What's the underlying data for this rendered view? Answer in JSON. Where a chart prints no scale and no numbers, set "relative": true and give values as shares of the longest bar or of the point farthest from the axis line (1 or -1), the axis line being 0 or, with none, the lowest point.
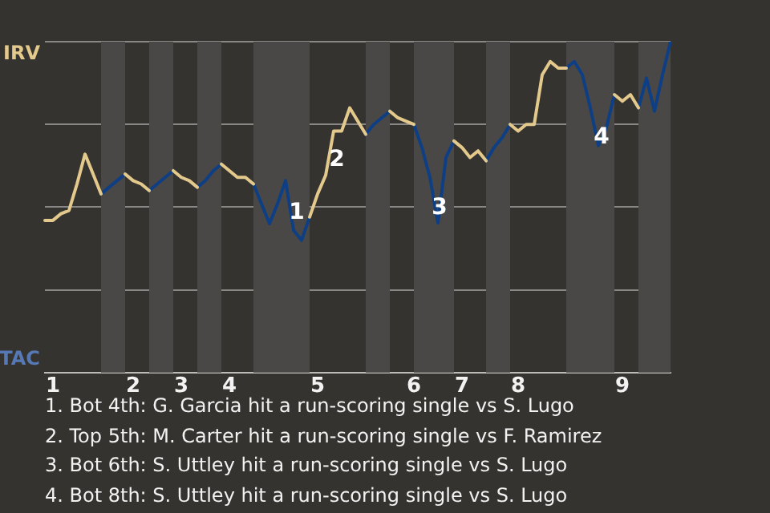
{
  "chart_data": {
    "type": "line",
    "relative": true,
    "grid": "y",
    "legend": false,
    "marker": "none",
    "line_style": "solid",
    "categories": [
      null,
      "1",
      null,
      null,
      null,
      null,
      null,
      null,
      null,
      null,
      null,
      "2",
      null,
      null,
      null,
      null,
      null,
      "3",
      null,
      null,
      null,
      null,
      null,
      "4",
      null,
      null,
      null,
      null,
      null,
      null,
      null,
      null,
      null,
      null,
      "5",
      null,
      null,
      null,
      null,
      null,
      null,
      null,
      null,
      null,
      null,
      null,
      "6",
      null,
      null,
      null,
      null,
      null,
      "7",
      null,
      null,
      null,
      null,
      null,
      null,
      "8",
      null,
      null,
      null,
      null,
      null,
      null,
      null,
      null,
      null,
      null,
      null,
      null,
      "9",
      null,
      null,
      null,
      null,
      null,
      null
    ],
    "series": [
      {
        "color": "#e3c98b",
        "values": [
          0.46,
          0.46,
          0.48,
          0.49,
          0.57,
          0.66,
          0.6,
          0.54,
          null,
          null,
          0.6,
          0.58,
          0.57,
          0.55,
          null,
          null,
          0.61,
          0.59,
          0.58,
          0.56,
          null,
          null,
          0.63,
          0.61,
          0.59,
          0.59,
          0.57,
          null,
          null,
          null,
          null,
          null,
          null,
          0.47,
          0.54,
          0.596,
          0.73,
          0.73,
          0.8,
          0.76,
          0.72,
          null,
          null,
          0.79,
          0.77,
          0.76,
          0.75,
          null,
          null,
          null,
          null,
          0.7,
          0.68,
          0.65,
          0.67,
          0.64,
          null,
          null,
          0.75,
          0.73,
          0.75,
          0.75,
          0.9,
          0.94,
          0.92,
          0.92,
          null,
          null,
          null,
          null,
          null,
          0.84,
          0.82,
          0.84,
          0.8,
          null,
          null,
          null,
          null
        ]
      },
      {
        "color": "#0e3f85",
        "values": [
          null,
          null,
          null,
          null,
          null,
          null,
          null,
          0.54,
          0.56,
          0.58,
          0.6,
          null,
          null,
          0.55,
          0.57,
          0.59,
          0.61,
          null,
          null,
          0.56,
          0.58,
          0.61,
          0.63,
          null,
          null,
          null,
          0.57,
          0.51,
          0.45,
          0.51,
          0.58,
          0.43,
          0.4,
          0.47,
          null,
          null,
          null,
          null,
          null,
          null,
          0.72,
          0.75,
          0.77,
          0.79,
          null,
          null,
          0.75,
          0.68,
          0.59,
          0.452,
          0.65,
          0.7,
          null,
          null,
          null,
          0.64,
          0.68,
          0.71,
          0.75,
          null,
          null,
          null,
          null,
          null,
          null,
          0.92,
          0.94,
          0.9,
          0.8,
          0.686,
          0.74,
          0.84,
          null,
          null,
          0.8,
          0.89,
          0.79,
          0.9,
          1
        ]
      }
    ],
    "annotations": [
      "IRV",
      "TAC",
      "1",
      "2",
      "3",
      "4",
      "1. Bot 4th: G. Garcia hit a run-scoring single vs S. Lugo",
      "2. Top 5th: M. Carter hit a run-scoring single vs F. Ramirez",
      "3. Bot 6th: S. Uttley hit a run-scoring single vs S. Lugo",
      "4. Bot 8th: S. Uttley hit a run-scoring single vs S. Lugo"
    ]
  }
}
